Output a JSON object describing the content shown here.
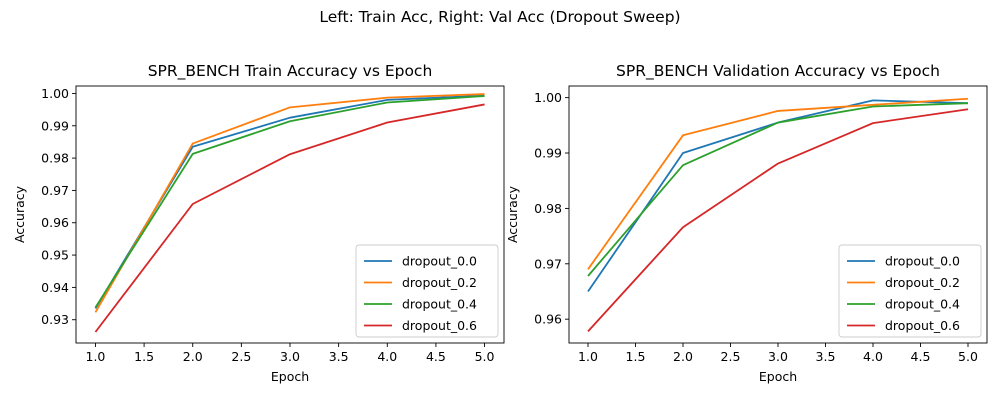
{
  "figure": {
    "suptitle": "Left: Train Acc, Right: Val Acc (Dropout Sweep)"
  },
  "chart_data": [
    {
      "type": "line",
      "title": "SPR_BENCH Train Accuracy vs Epoch",
      "xlabel": "Epoch",
      "ylabel": "Accuracy",
      "xlim": [
        0.8,
        5.2
      ],
      "ylim": [
        0.9228,
        1.0023
      ],
      "xticks": [
        1.0,
        1.5,
        2.0,
        2.5,
        3.0,
        3.5,
        4.0,
        4.5,
        5.0
      ],
      "xtick_labels": [
        "1.0",
        "1.5",
        "2.0",
        "2.5",
        "3.0",
        "3.5",
        "4.0",
        "4.5",
        "5.0"
      ],
      "yticks": [
        0.93,
        0.94,
        0.95,
        0.96,
        0.97,
        0.98,
        0.99,
        1.0
      ],
      "ytick_labels": [
        "0.93",
        "0.94",
        "0.95",
        "0.96",
        "0.97",
        "0.98",
        "0.99",
        "1.00"
      ],
      "grid": false,
      "legend": "lower-right",
      "x": [
        1,
        2,
        3,
        4,
        5
      ],
      "series": [
        {
          "name": "dropout_0.0",
          "color": "#1f77b4",
          "values": [
            0.9335,
            0.9835,
            0.9925,
            0.998,
            0.9993
          ]
        },
        {
          "name": "dropout_0.2",
          "color": "#ff7f0e",
          "values": [
            0.9323,
            0.9845,
            0.9957,
            0.9987,
            0.9998
          ]
        },
        {
          "name": "dropout_0.4",
          "color": "#2ca02c",
          "values": [
            0.9338,
            0.9813,
            0.9914,
            0.9972,
            0.9992
          ]
        },
        {
          "name": "dropout_0.6",
          "color": "#d62728",
          "values": [
            0.9262,
            0.9658,
            0.9812,
            0.991,
            0.9966
          ]
        }
      ]
    },
    {
      "type": "line",
      "title": "SPR_BENCH Validation Accuracy vs Epoch",
      "xlabel": "Epoch",
      "ylabel": "Accuracy",
      "xlim": [
        0.8,
        5.2
      ],
      "ylim": [
        0.9557,
        1.0021
      ],
      "xticks": [
        1.0,
        1.5,
        2.0,
        2.5,
        3.0,
        3.5,
        4.0,
        4.5,
        5.0
      ],
      "xtick_labels": [
        "1.0",
        "1.5",
        "2.0",
        "2.5",
        "3.0",
        "3.5",
        "4.0",
        "4.5",
        "5.0"
      ],
      "yticks": [
        0.96,
        0.97,
        0.98,
        0.99,
        1.0
      ],
      "ytick_labels": [
        "0.96",
        "0.97",
        "0.98",
        "0.99",
        "1.00"
      ],
      "grid": false,
      "legend": "lower-right",
      "x": [
        1,
        2,
        3,
        4,
        5
      ],
      "series": [
        {
          "name": "dropout_0.0",
          "color": "#1f77b4",
          "values": [
            0.965,
            0.99,
            0.9955,
            0.9995,
            0.999
          ]
        },
        {
          "name": "dropout_0.2",
          "color": "#ff7f0e",
          "values": [
            0.969,
            0.9932,
            0.9976,
            0.9987,
            0.9998
          ]
        },
        {
          "name": "dropout_0.4",
          "color": "#2ca02c",
          "values": [
            0.9678,
            0.9878,
            0.9955,
            0.9984,
            0.999
          ]
        },
        {
          "name": "dropout_0.6",
          "color": "#d62728",
          "values": [
            0.9578,
            0.9766,
            0.9881,
            0.9954,
            0.9979
          ]
        }
      ]
    }
  ]
}
